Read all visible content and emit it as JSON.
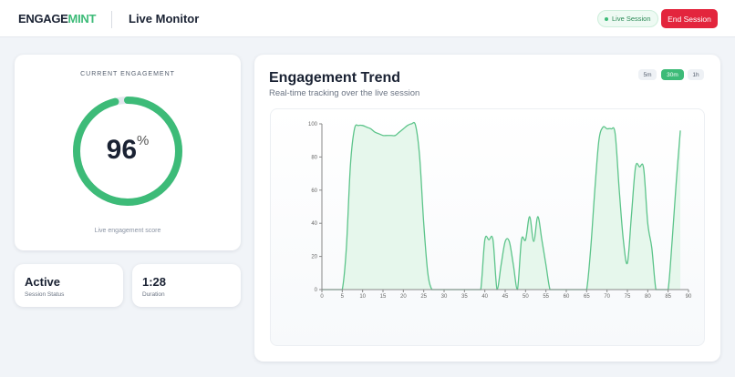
{
  "header": {
    "logo_part1": "ENGAGE",
    "logo_part2": "MINT",
    "title": "Live Monitor",
    "live_label": "Live Session",
    "end_label": "End Session"
  },
  "engagement": {
    "label": "CURRENT ENGAGEMENT",
    "value": 96,
    "value_text": "96",
    "unit": "%",
    "caption": "Live engagement score"
  },
  "stats": [
    {
      "value": "Active",
      "label": "Session Status"
    },
    {
      "value": "1:28",
      "label": "Duration"
    }
  ],
  "trend": {
    "title": "Engagement Trend",
    "subtitle": "Real-time tracking over the live session",
    "ranges": [
      "5m",
      "30m",
      "1h"
    ],
    "active_range": "30m"
  },
  "colors": {
    "accent": "#3dbb78",
    "danger": "#e3253d",
    "fill": "#e6f7ec"
  },
  "chart_data": {
    "type": "area",
    "xlim": [
      0,
      90
    ],
    "ylim": [
      0,
      100
    ],
    "xticks": [
      0,
      5,
      10,
      15,
      20,
      25,
      30,
      35,
      40,
      45,
      50,
      55,
      60,
      65,
      70,
      75,
      80,
      85,
      90
    ],
    "yticks": [
      0,
      20,
      40,
      60,
      80,
      100
    ],
    "x": [
      0,
      1,
      2,
      3,
      4,
      5,
      6,
      7,
      8,
      9,
      10,
      11,
      12,
      13,
      14,
      15,
      16,
      17,
      18,
      19,
      20,
      21,
      22,
      23,
      24,
      25,
      26,
      27,
      28,
      29,
      30,
      31,
      32,
      33,
      34,
      35,
      36,
      37,
      38,
      39,
      40,
      41,
      42,
      43,
      44,
      45,
      46,
      47,
      48,
      49,
      50,
      51,
      52,
      53,
      54,
      55,
      56,
      57,
      58,
      59,
      60,
      61,
      62,
      63,
      64,
      65,
      66,
      67,
      68,
      69,
      70,
      71,
      72,
      73,
      74,
      75,
      76,
      77,
      78,
      79,
      80,
      81,
      82,
      83,
      84,
      85,
      86,
      87,
      88
    ],
    "y": [
      0,
      0,
      0,
      0,
      0,
      0,
      25,
      75,
      97,
      99,
      99,
      98,
      97,
      95,
      94,
      93,
      93,
      93,
      93,
      95,
      97,
      99,
      100,
      99,
      80,
      40,
      10,
      0,
      0,
      0,
      0,
      0,
      0,
      0,
      0,
      0,
      0,
      0,
      0,
      0,
      30,
      30,
      30,
      0,
      15,
      29,
      29,
      15,
      0,
      30,
      30,
      44,
      29,
      44,
      30,
      15,
      0,
      0,
      0,
      0,
      0,
      0,
      0,
      0,
      0,
      0,
      25,
      60,
      90,
      98,
      97,
      97,
      94,
      60,
      30,
      16,
      45,
      74,
      74,
      73,
      40,
      25,
      0,
      0,
      0,
      0,
      30,
      65,
      96
    ],
    "grid": false
  }
}
